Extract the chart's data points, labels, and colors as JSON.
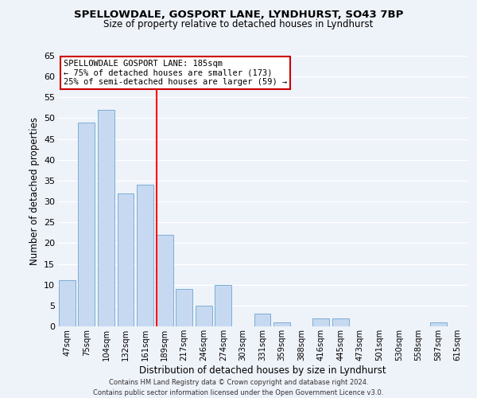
{
  "title1": "SPELLOWDALE, GOSPORT LANE, LYNDHURST, SO43 7BP",
  "title2": "Size of property relative to detached houses in Lyndhurst",
  "xlabel": "Distribution of detached houses by size in Lyndhurst",
  "ylabel": "Number of detached properties",
  "bar_labels": [
    "47sqm",
    "75sqm",
    "104sqm",
    "132sqm",
    "161sqm",
    "189sqm",
    "217sqm",
    "246sqm",
    "274sqm",
    "303sqm",
    "331sqm",
    "359sqm",
    "388sqm",
    "416sqm",
    "445sqm",
    "473sqm",
    "501sqm",
    "530sqm",
    "558sqm",
    "587sqm",
    "615sqm"
  ],
  "bar_values": [
    11,
    49,
    52,
    32,
    34,
    22,
    9,
    5,
    10,
    0,
    3,
    1,
    0,
    2,
    2,
    0,
    0,
    0,
    0,
    1,
    0
  ],
  "bar_color": "#c6d9f1",
  "bar_edge_color": "#7bafd4",
  "vline_bar_index": 5,
  "vline_color": "red",
  "ylim": [
    0,
    65
  ],
  "yticks": [
    0,
    5,
    10,
    15,
    20,
    25,
    30,
    35,
    40,
    45,
    50,
    55,
    60,
    65
  ],
  "annotation_title": "SPELLOWDALE GOSPORT LANE: 185sqm",
  "annotation_line1": "← 75% of detached houses are smaller (173)",
  "annotation_line2": "25% of semi-detached houses are larger (59) →",
  "annotation_box_color": "white",
  "annotation_box_edge": "#cc0000",
  "footer1": "Contains HM Land Registry data © Crown copyright and database right 2024.",
  "footer2": "Contains public sector information licensed under the Open Government Licence v3.0.",
  "background_color": "#eef2f9",
  "grid_color": "white"
}
